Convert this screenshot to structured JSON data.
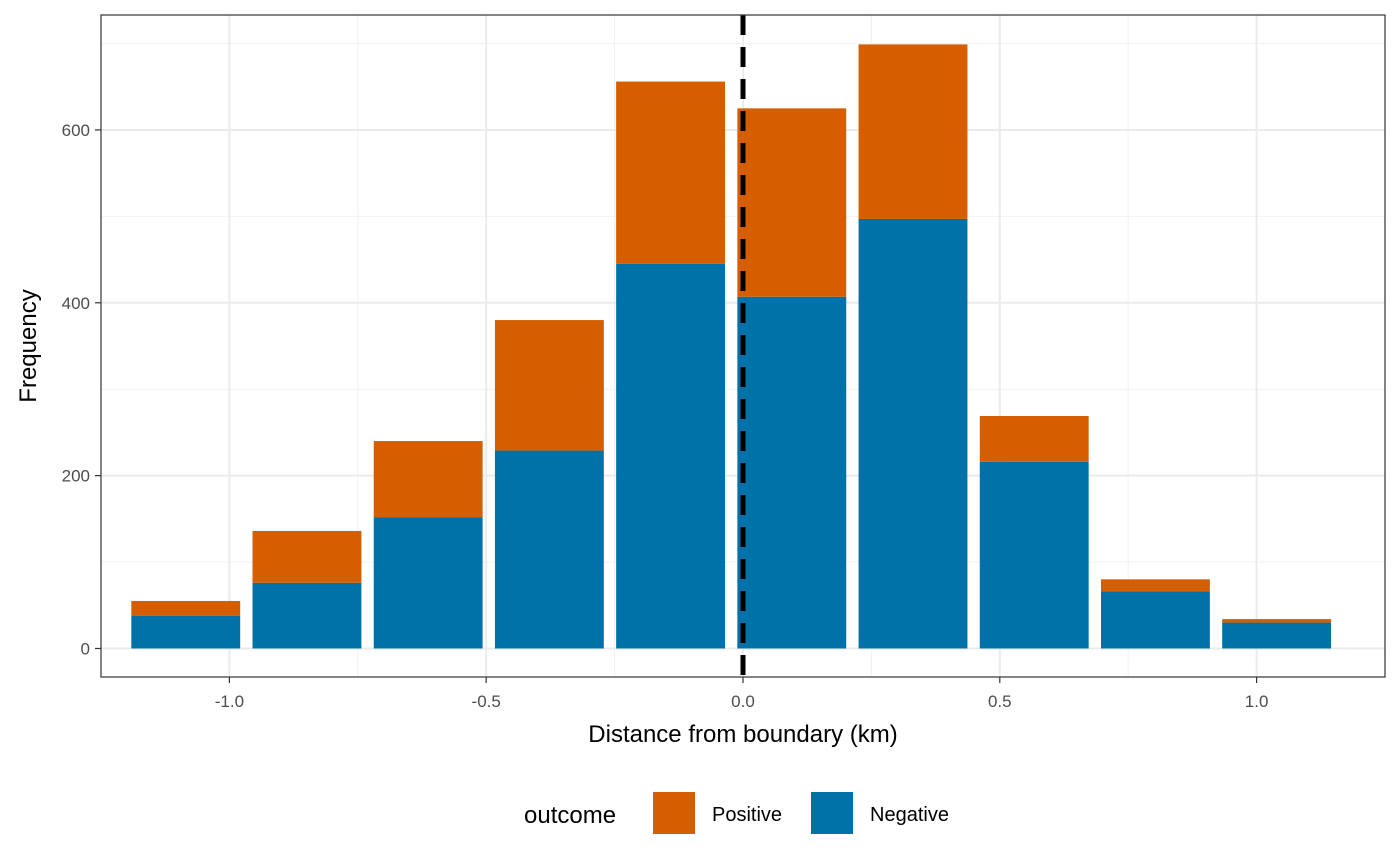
{
  "chart_data": {
    "type": "bar",
    "stacked": true,
    "title": "",
    "xlabel": "Distance from boundary (km)",
    "ylabel": "Frequency",
    "xlim": [
      -1.25,
      1.25
    ],
    "ylim": [
      -33,
      733
    ],
    "x_ticks": [
      -1.0,
      -0.5,
      0.0,
      0.5,
      1.0
    ],
    "x_tick_labels": [
      "-1.0",
      "-0.5",
      "0.0",
      "0.5",
      "1.0"
    ],
    "y_ticks": [
      0,
      200,
      400,
      600
    ],
    "y_tick_labels": [
      "0",
      "200",
      "400",
      "600"
    ],
    "grid": true,
    "bin_width": 0.236,
    "bar_width": 0.212,
    "bin_centers": [
      -1.085,
      -0.849,
      -0.613,
      -0.377,
      -0.141,
      0.095,
      0.331,
      0.567,
      0.803,
      1.039
    ],
    "series": [
      {
        "name": "Negative",
        "color": "#0072A8",
        "values": [
          38,
          76,
          152,
          229,
          445,
          407,
          497,
          216,
          66,
          30
        ]
      },
      {
        "name": "Positive",
        "color": "#D55E00",
        "values": [
          17,
          60,
          88,
          151,
          211,
          218,
          202,
          53,
          14,
          4
        ]
      }
    ],
    "reference_line": {
      "x": 0.0,
      "style": "dashed",
      "color": "#000000"
    },
    "legend": {
      "title": "outcome",
      "position": "bottom",
      "items": [
        {
          "label": "Positive",
          "color": "#D55E00"
        },
        {
          "label": "Negative",
          "color": "#0072A8"
        }
      ]
    }
  }
}
